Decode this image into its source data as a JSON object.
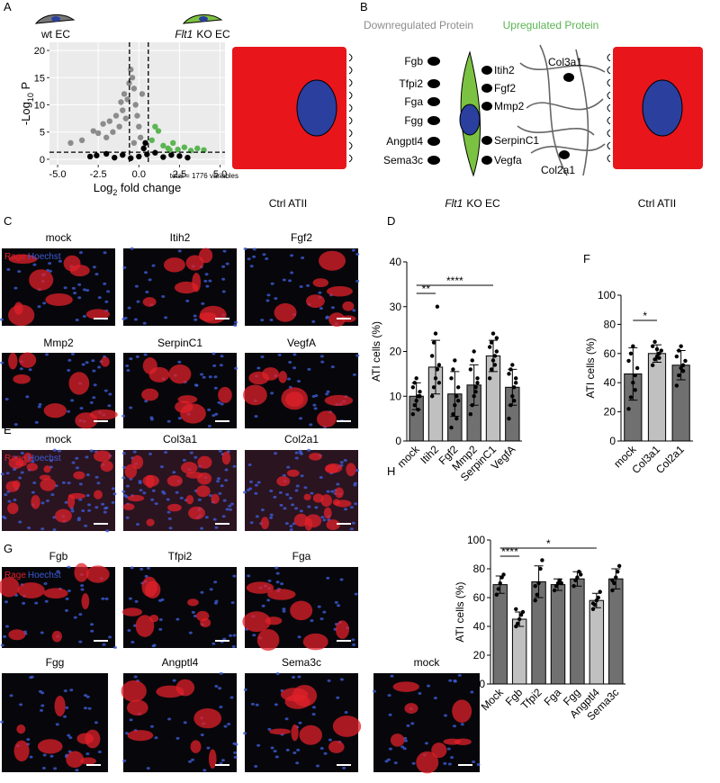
{
  "panels": [
    "A",
    "B",
    "C",
    "D",
    "E",
    "F",
    "G",
    "H"
  ],
  "chart_data": [
    {
      "type": "scatter",
      "header_left": "wt EC",
      "header_right_italic": "Flt1",
      "header_right": "KO EC",
      "xlabel": [
        "Log",
        "2",
        " fold change"
      ],
      "ylabel": [
        "-Log",
        "10",
        " P"
      ],
      "caption": "total = 1776 variables",
      "xlim": [
        -5.5,
        5.3
      ],
      "ylim": [
        -1,
        21.5
      ],
      "xticks": [
        {
          "value": -5,
          "label": "-5.0"
        },
        {
          "value": -2.5,
          "label": "-2.5"
        },
        {
          "value": 0,
          "label": "0.0"
        },
        {
          "value": 2.5,
          "label": "2.5"
        },
        {
          "value": 5,
          "label": "5.0"
        }
      ],
      "yticks": [
        0,
        5,
        10,
        15,
        20
      ],
      "grid": true,
      "vlines": [
        -0.58,
        0.58
      ],
      "hline": 1.3,
      "series": [
        {
          "color": "#8c8c8c",
          "x": [
            -4.2,
            -3.5,
            -2.8,
            -2.5,
            -2.2,
            -2.0,
            -1.8,
            -1.6,
            -1.4,
            -1.2,
            -1.1,
            -1.0,
            -0.9,
            -0.8,
            -0.7,
            -0.6,
            -0.5,
            -0.4,
            -0.3,
            -0.2,
            -0.1,
            0.0,
            0.2,
            0.1,
            -0.3
          ],
          "values": [
            3,
            3.5,
            5.2,
            4.8,
            6.5,
            4,
            7,
            5,
            8,
            6,
            10.5,
            9,
            12,
            7.5,
            11,
            14,
            16.5,
            15,
            13,
            10,
            8,
            6,
            12,
            4,
            3
          ]
        },
        {
          "color": "#000000",
          "x": [
            -3,
            -2,
            -1.5,
            -1,
            -0.5,
            0,
            0.5,
            1,
            1.5,
            2,
            3,
            0.4,
            0.3,
            2.5,
            -2.6
          ],
          "values": [
            0.5,
            1.0,
            0.3,
            0.8,
            0.2,
            0.5,
            0.9,
            1.2,
            0.4,
            0.8,
            0.3,
            3,
            2,
            0.6,
            0.7
          ]
        },
        {
          "color": "#5ab552",
          "x": [
            0.8,
            1.0,
            1.2,
            1.5,
            1.8,
            2.1,
            2.4,
            2.8,
            3.2,
            3.6,
            4.0,
            1.9
          ],
          "values": [
            3.5,
            6,
            5.2,
            2.5,
            2,
            3,
            1.8,
            2.2,
            1.6,
            2,
            1.7,
            1.7
          ]
        }
      ]
    },
    {
      "type": "bar",
      "ylabel": "ATI cells (%)",
      "ylim": [
        0,
        40
      ],
      "yticks": [
        0,
        10,
        20,
        30,
        40
      ],
      "categories": [
        "mock",
        "Itih2",
        "Fgf2",
        "Mmp2",
        "SerpinC1",
        "VegfA"
      ],
      "values": [
        10,
        16.5,
        10.5,
        12.5,
        19,
        12
      ],
      "errors": [
        3,
        6,
        5,
        4.5,
        3.5,
        4
      ],
      "colors": [
        "#707070",
        "#c0c0c0",
        "#707070",
        "#707070",
        "#c0c0c0",
        "#707070"
      ],
      "points": [
        [
          6,
          8,
          9,
          10,
          11,
          12,
          13,
          14,
          7,
          10
        ],
        [
          10,
          12,
          14,
          16,
          17,
          19,
          22,
          24,
          30,
          13
        ],
        [
          3,
          6,
          8,
          10,
          12,
          14,
          16,
          18,
          5,
          9
        ],
        [
          6,
          8,
          10,
          12,
          14,
          16,
          18,
          20,
          11,
          13
        ],
        [
          14,
          16,
          18,
          19,
          20,
          21,
          22,
          24,
          17,
          23
        ],
        [
          5,
          8,
          10,
          12,
          14,
          15,
          16,
          17,
          9,
          13
        ]
      ],
      "significance": [
        {
          "pair": [
            0,
            1
          ],
          "label": "**"
        },
        {
          "pair": [
            0,
            4
          ],
          "label": "****"
        }
      ]
    },
    {
      "type": "bar",
      "ylabel": "ATI cells (%)",
      "ylim": [
        0,
        100
      ],
      "yticks": [
        0,
        20,
        40,
        60,
        80,
        100
      ],
      "categories": [
        "mock",
        "Col3a1",
        "Col2a1"
      ],
      "values": [
        46,
        60,
        52
      ],
      "errors": [
        18,
        6,
        10
      ],
      "colors": [
        "#707070",
        "#c0c0c0",
        "#707070"
      ],
      "points": [
        [
          22,
          30,
          40,
          45,
          50,
          55,
          60,
          65,
          35
        ],
        [
          52,
          56,
          58,
          60,
          62,
          65,
          68,
          63,
          57
        ],
        [
          38,
          45,
          50,
          52,
          55,
          58,
          62,
          65,
          48
        ]
      ],
      "significance": [
        {
          "pair": [
            0,
            1
          ],
          "label": "*"
        }
      ]
    },
    {
      "type": "bar",
      "ylabel": "ATI cells (%)",
      "ylim": [
        0,
        100
      ],
      "yticks": [
        0,
        20,
        40,
        60,
        80,
        100
      ],
      "categories": [
        "Mock",
        "Fgb",
        "Tfpi2",
        "Fga",
        "Fgg",
        "Angptl4",
        "Sema3c"
      ],
      "values": [
        69,
        45,
        71,
        69,
        73,
        58,
        73
      ],
      "errors": [
        6,
        5,
        11,
        4,
        5,
        5,
        7
      ],
      "colors": [
        "#707070",
        "#c0c0c0",
        "#707070",
        "#707070",
        "#707070",
        "#c0c0c0",
        "#707070"
      ],
      "points": [
        [
          62,
          66,
          70,
          74,
          76
        ],
        [
          40,
          42,
          45,
          48,
          50,
          52
        ],
        [
          58,
          62,
          70,
          80,
          86,
          68
        ],
        [
          65,
          68,
          70,
          72,
          70
        ],
        [
          68,
          72,
          74,
          78,
          76
        ],
        [
          52,
          55,
          58,
          60,
          64,
          56
        ],
        [
          65,
          70,
          74,
          78,
          82,
          72
        ]
      ],
      "significance": [
        {
          "pair": [
            0,
            1
          ],
          "label": "****"
        },
        {
          "pair": [
            0,
            5
          ],
          "label": "*"
        }
      ]
    }
  ],
  "diagram": {
    "title_down": "Downregulated Protein",
    "title_up": "Upregulated Protein",
    "down": [
      "Fgb",
      "Tfpi2",
      "Fga",
      "Fgg",
      "Angptl4",
      "Sema3c"
    ],
    "up": [
      "Itih2",
      "Fgf2",
      "Mmp2",
      "SerpinC1",
      "Vegfa"
    ],
    "matrix": [
      "Col3a1",
      "Col2a1"
    ],
    "ctrl_left": "Ctrl ATII",
    "ctrl_right": "Ctrl ATII",
    "ko_italic": "Flt1",
    "ko": "KO EC"
  },
  "images": {
    "stain": [
      "Rage",
      "Hoechst"
    ],
    "C": [
      [
        "mock",
        "Itih2",
        "Fgf2"
      ],
      [
        "Mmp2",
        "SerpinC1",
        "VegfA"
      ]
    ],
    "E": [
      [
        "mock",
        "Col3a1",
        "Col2a1"
      ]
    ],
    "G": [
      [
        "Fgb",
        "Tfpi2",
        "Fga"
      ],
      [
        "Fgg",
        "Angptl4",
        "Sema3c",
        "mock"
      ]
    ]
  }
}
